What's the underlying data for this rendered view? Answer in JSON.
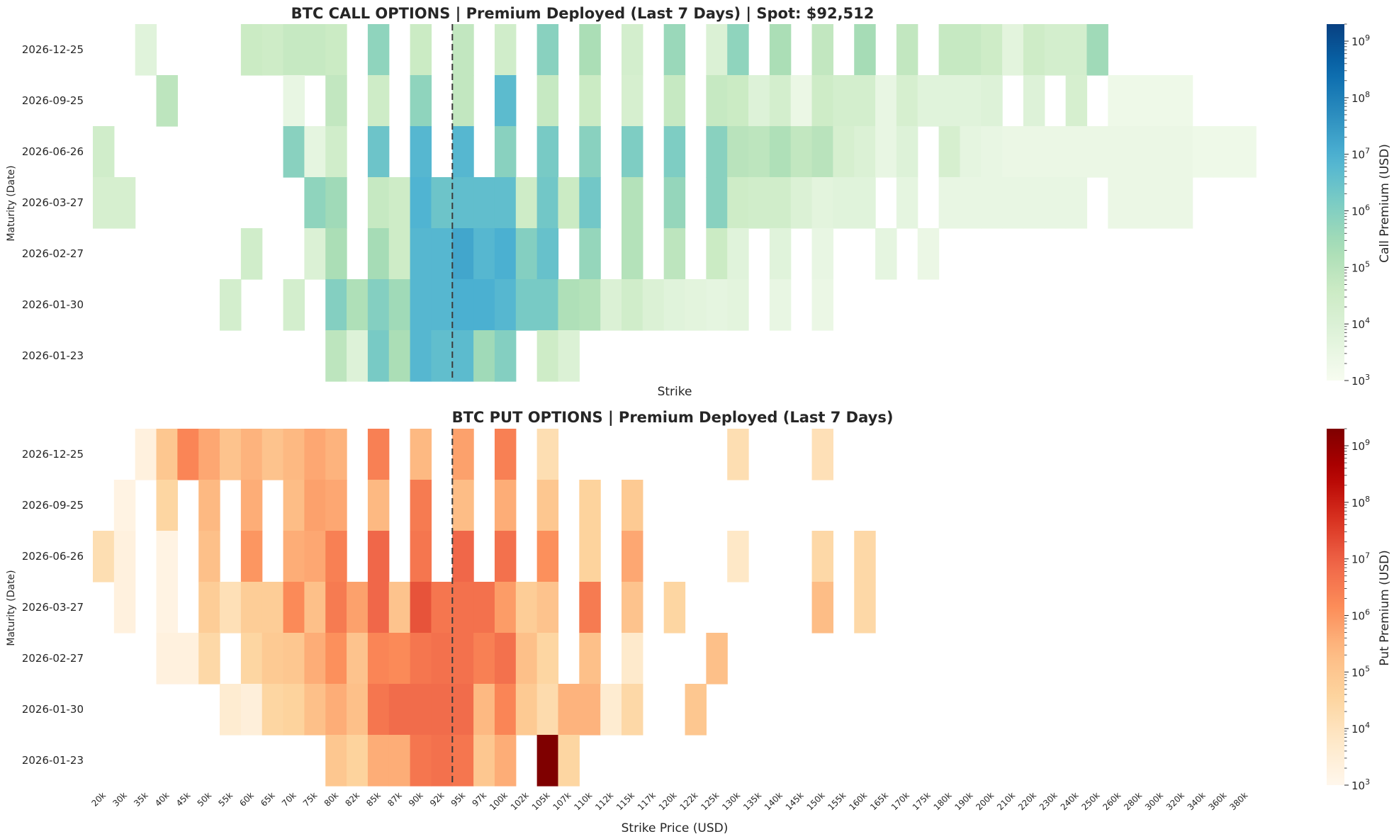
{
  "chart_data": [
    {
      "type": "heatmap",
      "id": "calls",
      "title": "BTC CALL OPTIONS | Premium Deployed (Last 7 Days) | Spot: $92,512",
      "xlabel": "Strike",
      "ylabel": "Maturity (Date)",
      "colorbar_label": "Call Premium (USD)",
      "colormap": "GnBu",
      "color_scale": "log",
      "clim": [
        1000,
        2000000000
      ],
      "colorbar_ticks": [
        {
          "base": "10",
          "exp": "3",
          "value": 1000
        },
        {
          "base": "10",
          "exp": "4",
          "value": 10000
        },
        {
          "base": "10",
          "exp": "5",
          "value": 100000
        },
        {
          "base": "10",
          "exp": "6",
          "value": 1000000
        },
        {
          "base": "10",
          "exp": "7",
          "value": 10000000
        },
        {
          "base": "10",
          "exp": "8",
          "value": 100000000
        },
        {
          "base": "10",
          "exp": "9",
          "value": 1000000000
        }
      ],
      "spot": 92512,
      "spot_between": [
        "92k",
        "95k"
      ],
      "spot_fraction": 0.5,
      "maturities": [
        "2026-12-25",
        "2026-09-25",
        "2026-06-26",
        "2026-03-27",
        "2026-02-27",
        "2026-01-30",
        "2026-01-23"
      ],
      "strikes": [
        "20k",
        "30k",
        "35k",
        "40k",
        "45k",
        "50k",
        "55k",
        "60k",
        "65k",
        "70k",
        "75k",
        "80k",
        "82k",
        "85k",
        "87k",
        "90k",
        "92k",
        "95k",
        "97k",
        "100k",
        "102k",
        "105k",
        "107k",
        "110k",
        "112k",
        "115k",
        "117k",
        "120k",
        "122k",
        "125k",
        "130k",
        "135k",
        "140k",
        "145k",
        "150k",
        "155k",
        "160k",
        "165k",
        "170k",
        "175k",
        "180k",
        "190k",
        "200k",
        "210k",
        "220k",
        "230k",
        "240k",
        "250k",
        "260k",
        "280k",
        "300k",
        "320k",
        "340k",
        "360k",
        "380k"
      ],
      "log10_values": [
        [
          null,
          null,
          3.8,
          null,
          null,
          null,
          null,
          4.6,
          4.5,
          4.7,
          4.7,
          4.6,
          null,
          5.8,
          null,
          4.6,
          null,
          4.8,
          null,
          4.4,
          null,
          5.9,
          null,
          5.3,
          null,
          4.3,
          null,
          5.6,
          null,
          4.0,
          5.8,
          null,
          5.3,
          null,
          4.8,
          null,
          5.4,
          null,
          4.8,
          null,
          4.7,
          4.7,
          4.5,
          3.7,
          4.5,
          4.3,
          4.3,
          5.5,
          null,
          null,
          null,
          null,
          null,
          null,
          null
        ],
        [
          null,
          null,
          null,
          4.9,
          null,
          null,
          null,
          null,
          null,
          3.5,
          null,
          4.8,
          null,
          4.5,
          null,
          5.8,
          null,
          4.8,
          null,
          6.7,
          null,
          4.7,
          null,
          4.6,
          null,
          4.2,
          null,
          4.7,
          null,
          4.7,
          4.6,
          3.9,
          4.3,
          3.4,
          4.5,
          4.3,
          4.3,
          3.5,
          4.2,
          3.8,
          3.8,
          3.8,
          3.9,
          null,
          3.9,
          null,
          4.2,
          null,
          3.3,
          3.3,
          3.3,
          3.3,
          null,
          null,
          null
        ],
        [
          4.4,
          null,
          null,
          null,
          null,
          null,
          null,
          null,
          null,
          5.9,
          3.6,
          4.4,
          null,
          6.4,
          null,
          6.8,
          null,
          6.8,
          null,
          5.9,
          null,
          6.2,
          null,
          5.9,
          null,
          6.1,
          null,
          6.1,
          null,
          5.9,
          5.0,
          4.9,
          5.2,
          4.8,
          5.0,
          4.2,
          4.0,
          3.5,
          3.9,
          null,
          4.2,
          3.6,
          3.5,
          3.4,
          3.4,
          3.4,
          3.4,
          3.4,
          3.4,
          3.4,
          3.4,
          3.4,
          3.3,
          3.3,
          3.3
        ],
        [
          4.2,
          4.2,
          null,
          null,
          null,
          null,
          null,
          null,
          null,
          null,
          5.8,
          5.5,
          null,
          4.7,
          4.5,
          6.9,
          6.4,
          6.6,
          6.6,
          6.6,
          4.5,
          6.3,
          4.6,
          6.3,
          null,
          5.1,
          null,
          5.7,
          null,
          5.9,
          4.5,
          4.4,
          4.4,
          4.0,
          3.7,
          3.8,
          3.8,
          null,
          3.6,
          null,
          3.5,
          3.5,
          3.5,
          3.5,
          3.5,
          3.5,
          3.5,
          null,
          3.4,
          3.4,
          3.4,
          3.4,
          null,
          null,
          null
        ],
        [
          null,
          null,
          null,
          null,
          null,
          null,
          null,
          4.4,
          null,
          null,
          4.0,
          5.3,
          null,
          5.4,
          4.5,
          6.8,
          6.8,
          7.2,
          6.8,
          7.0,
          6.0,
          6.5,
          null,
          5.7,
          null,
          5.1,
          null,
          4.9,
          null,
          4.6,
          3.8,
          null,
          3.8,
          null,
          3.5,
          null,
          null,
          3.6,
          null,
          3.4,
          null,
          null,
          null,
          null,
          null,
          null,
          null,
          null,
          null,
          null,
          null,
          null,
          null,
          null,
          null
        ],
        [
          null,
          null,
          null,
          null,
          null,
          null,
          4.3,
          null,
          null,
          4.3,
          null,
          6.0,
          5.2,
          6.0,
          5.5,
          6.8,
          6.8,
          7.0,
          7.0,
          6.8,
          6.2,
          6.2,
          5.2,
          5.1,
          4.0,
          4.4,
          4.0,
          3.8,
          3.7,
          3.6,
          3.7,
          null,
          3.5,
          null,
          3.4,
          null,
          null,
          null,
          null,
          null,
          null,
          null,
          null,
          null,
          null,
          null,
          null,
          null,
          null,
          null,
          null,
          null,
          null,
          null,
          null
        ],
        [
          null,
          null,
          null,
          null,
          null,
          null,
          null,
          null,
          null,
          null,
          null,
          4.9,
          3.9,
          6.2,
          5.3,
          6.8,
          6.6,
          6.7,
          5.5,
          6.0,
          null,
          4.5,
          4.0,
          null,
          null,
          null,
          null,
          null,
          null,
          null,
          null,
          null,
          null,
          null,
          null,
          null,
          null,
          null,
          null,
          null,
          null,
          null,
          null,
          null,
          null,
          null,
          null,
          null,
          null,
          null,
          null,
          null,
          null,
          null,
          null
        ]
      ]
    },
    {
      "type": "heatmap",
      "id": "puts",
      "title": "BTC PUT OPTIONS | Premium Deployed (Last 7 Days)",
      "xlabel": "Strike Price (USD)",
      "ylabel": "Maturity (Date)",
      "colorbar_label": "Put Premium (USD)",
      "colormap": "OrRd",
      "color_scale": "log",
      "clim": [
        1000,
        2000000000
      ],
      "colorbar_ticks": [
        {
          "base": "10",
          "exp": "3",
          "value": 1000
        },
        {
          "base": "10",
          "exp": "4",
          "value": 10000
        },
        {
          "base": "10",
          "exp": "5",
          "value": 100000
        },
        {
          "base": "10",
          "exp": "6",
          "value": 1000000
        },
        {
          "base": "10",
          "exp": "7",
          "value": 10000000
        },
        {
          "base": "10",
          "exp": "8",
          "value": 100000000
        },
        {
          "base": "10",
          "exp": "9",
          "value": 1000000000
        }
      ],
      "spot": 92512,
      "spot_between": [
        "92k",
        "95k"
      ],
      "spot_fraction": 0.5,
      "maturities": [
        "2026-12-25",
        "2026-09-25",
        "2026-06-26",
        "2026-03-27",
        "2026-02-27",
        "2026-01-30",
        "2026-01-23"
      ],
      "strikes": [
        "20k",
        "30k",
        "35k",
        "40k",
        "45k",
        "50k",
        "55k",
        "60k",
        "65k",
        "70k",
        "75k",
        "80k",
        "82k",
        "85k",
        "87k",
        "90k",
        "92k",
        "95k",
        "97k",
        "100k",
        "102k",
        "105k",
        "107k",
        "110k",
        "112k",
        "115k",
        "117k",
        "120k",
        "122k",
        "125k",
        "130k",
        "135k",
        "140k",
        "145k",
        "150k",
        "155k",
        "160k",
        "165k",
        "170k",
        "175k",
        "180k",
        "190k",
        "200k",
        "210k",
        "220k",
        "230k",
        "240k",
        "250k",
        "260k",
        "280k",
        "300k",
        "320k",
        "340k",
        "360k",
        "380k"
      ],
      "log10_values": [
        [
          null,
          null,
          3.3,
          5.0,
          6.3,
          5.7,
          5.1,
          5.5,
          5.1,
          5.4,
          5.7,
          5.5,
          null,
          6.4,
          null,
          5.4,
          null,
          5.8,
          null,
          6.4,
          null,
          4.2,
          null,
          null,
          null,
          null,
          null,
          null,
          null,
          null,
          4.2,
          null,
          null,
          null,
          4.1,
          null,
          null,
          null,
          null,
          null,
          null,
          null,
          null,
          null,
          null,
          null,
          null,
          null,
          null,
          null,
          null,
          null,
          null,
          null,
          null
        ],
        [
          null,
          3.2,
          null,
          4.5,
          null,
          5.4,
          null,
          5.6,
          null,
          5.3,
          5.8,
          5.7,
          null,
          5.4,
          null,
          6.5,
          null,
          5.3,
          null,
          5.6,
          null,
          5.0,
          null,
          4.6,
          null,
          4.9,
          null,
          null,
          null,
          null,
          null,
          null,
          null,
          null,
          null,
          null,
          null,
          null,
          null,
          null,
          null,
          null,
          null,
          null,
          null,
          null,
          null,
          null,
          null,
          null,
          null,
          null,
          null,
          null,
          null
        ],
        [
          4.2,
          3.3,
          null,
          3.2,
          null,
          5.2,
          null,
          6.0,
          null,
          5.6,
          5.7,
          6.4,
          null,
          6.9,
          null,
          6.6,
          null,
          6.9,
          null,
          6.7,
          null,
          6.1,
          null,
          4.6,
          null,
          5.7,
          null,
          null,
          null,
          null,
          3.8,
          null,
          null,
          null,
          4.4,
          null,
          4.4,
          null,
          null,
          null,
          null,
          null,
          null,
          null,
          null,
          null,
          null,
          null,
          null,
          null,
          null,
          null,
          null,
          null,
          null
        ],
        [
          null,
          3.3,
          null,
          3.2,
          null,
          4.8,
          4.1,
          4.8,
          4.8,
          6.2,
          5.2,
          6.5,
          5.8,
          6.9,
          5.1,
          7.2,
          6.6,
          6.7,
          6.7,
          5.9,
          4.8,
          5.1,
          null,
          6.5,
          null,
          5.1,
          null,
          4.5,
          null,
          null,
          null,
          null,
          null,
          null,
          5.3,
          null,
          4.4,
          null,
          null,
          null,
          null,
          null,
          null,
          null,
          null,
          null,
          null,
          null,
          null,
          null,
          null,
          null,
          null,
          null,
          null
        ],
        [
          null,
          null,
          null,
          3.3,
          3.3,
          4.4,
          null,
          4.5,
          4.9,
          5.0,
          5.6,
          6.1,
          5.1,
          6.3,
          6.2,
          6.6,
          6.7,
          6.7,
          6.4,
          6.7,
          5.2,
          4.5,
          null,
          5.2,
          null,
          3.7,
          null,
          null,
          null,
          5.2,
          null,
          null,
          null,
          null,
          null,
          null,
          null,
          null,
          null,
          null,
          null,
          null,
          null,
          null,
          null,
          null,
          null,
          null,
          null,
          null,
          null,
          null,
          null,
          null,
          null
        ],
        [
          null,
          null,
          null,
          null,
          null,
          null,
          3.6,
          3.4,
          4.5,
          4.6,
          5.2,
          5.6,
          5.2,
          6.6,
          6.8,
          6.8,
          6.8,
          6.8,
          5.4,
          6.3,
          4.9,
          4.3,
          5.5,
          5.5,
          3.6,
          4.4,
          null,
          null,
          5.0,
          null,
          null,
          null,
          null,
          null,
          null,
          null,
          null,
          null,
          null,
          null,
          null,
          null,
          null,
          null,
          null,
          null,
          null,
          null,
          null,
          null,
          null,
          null,
          null,
          null,
          null
        ],
        [
          null,
          null,
          null,
          null,
          null,
          null,
          null,
          null,
          null,
          null,
          null,
          5.0,
          4.6,
          5.6,
          5.6,
          6.6,
          6.7,
          6.6,
          5.0,
          5.6,
          null,
          9.3,
          4.5,
          null,
          null,
          null,
          null,
          null,
          null,
          null,
          null,
          null,
          null,
          null,
          null,
          null,
          null,
          null,
          null,
          null,
          null,
          null,
          null,
          null,
          null,
          null,
          null,
          null,
          null,
          null,
          null,
          null,
          null,
          null,
          null
        ]
      ]
    }
  ]
}
